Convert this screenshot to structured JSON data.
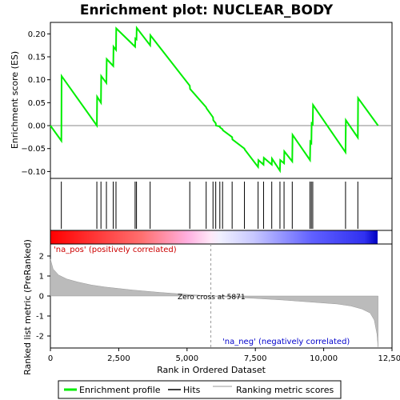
{
  "chart_data": {
    "type": "line",
    "title": "Enrichment plot: NUCLEAR_BODY",
    "xlabel": "Rank in Ordered Dataset",
    "ylabel_top": "Enrichment score (ES)",
    "ylabel_bottom": "Ranked list metric (PreRanked)",
    "x_range": [
      0,
      12000
    ],
    "x_ticks": [
      0,
      2500,
      5000,
      7500,
      10000,
      12500
    ],
    "x_tick_labels": [
      "0",
      "2,500",
      "5,000",
      "7,500",
      "10,000",
      "12,500"
    ],
    "es_ylim": [
      -0.115,
      0.225
    ],
    "es_ticks": [
      -0.1,
      -0.05,
      0.0,
      0.05,
      0.1,
      0.15,
      0.2
    ],
    "es_tick_labels": [
      "−0.10",
      "−0.05",
      "0.00",
      "0.05",
      "0.10",
      "0.15",
      "0.20"
    ],
    "metric_ylim": [
      -2.6,
      2.6
    ],
    "metric_ticks": [
      2,
      1,
      0,
      -1,
      -2
    ],
    "metric_tick_labels": [
      "2",
      "1",
      "0",
      "-1",
      "-2"
    ],
    "hits": [
      400,
      1700,
      1850,
      2050,
      2300,
      2400,
      3100,
      3150,
      3650,
      5100,
      5700,
      5950,
      6050,
      6200,
      6300,
      6650,
      7100,
      7600,
      7800,
      8100,
      8400,
      8550,
      8850,
      9500,
      9550,
      9600,
      10800,
      11250
    ],
    "es_profile": {
      "x": [
        0,
        400,
        410,
        1700,
        1710,
        1850,
        1860,
        2050,
        2060,
        2300,
        2310,
        2400,
        2410,
        3100,
        3110,
        3150,
        3160,
        3650,
        3660,
        5100,
        5110,
        5700,
        5710,
        5950,
        5960,
        6050,
        6060,
        6200,
        6210,
        6300,
        6310,
        6650,
        6660,
        7100,
        7110,
        7600,
        7610,
        7800,
        7810,
        8100,
        8110,
        8400,
        8410,
        8550,
        8560,
        8850,
        8860,
        9500,
        9510,
        9550,
        9560,
        9600,
        9610,
        10800,
        10810,
        11250,
        11260,
        11990
      ],
      "y": [
        0.0,
        -0.033,
        0.108,
        0.0,
        0.063,
        0.05,
        0.108,
        0.093,
        0.145,
        0.13,
        0.172,
        0.165,
        0.212,
        0.172,
        0.19,
        0.188,
        0.213,
        0.175,
        0.197,
        0.087,
        0.08,
        0.04,
        0.038,
        0.018,
        0.012,
        0.005,
        0.0,
        -0.002,
        -0.004,
        -0.008,
        -0.01,
        -0.025,
        -0.03,
        -0.05,
        -0.052,
        -0.09,
        -0.075,
        -0.085,
        -0.07,
        -0.085,
        -0.072,
        -0.098,
        -0.075,
        -0.082,
        -0.056,
        -0.078,
        -0.02,
        -0.075,
        -0.035,
        -0.038,
        0.008,
        0.0,
        0.045,
        -0.058,
        0.012,
        -0.026,
        0.06,
        0.0
      ]
    },
    "metric_profile": {
      "x": [
        0,
        100,
        300,
        600,
        1000,
        1500,
        2000,
        3000,
        4000,
        5000,
        5871,
        6500,
        7500,
        8500,
        9500,
        10500,
        11000,
        11400,
        11700,
        11850,
        11950,
        11990
      ],
      "y": [
        1.85,
        1.35,
        1.05,
        0.85,
        0.7,
        0.55,
        0.45,
        0.3,
        0.18,
        0.08,
        0.0,
        -0.05,
        -0.12,
        -0.2,
        -0.3,
        -0.4,
        -0.5,
        -0.65,
        -0.85,
        -1.2,
        -1.9,
        -2.55
      ]
    },
    "zero_cross": 5871,
    "annotations": {
      "pos": "'na_pos' (positively correlated)",
      "neg": "'na_neg' (negatively correlated)",
      "zero": "Zero cross at 5871"
    },
    "legend": [
      {
        "label": "Enrichment profile",
        "color": "#00ee00"
      },
      {
        "label": "Hits",
        "color": "#000000"
      },
      {
        "label": "Ranking metric scores",
        "color": "#bbbbbb"
      }
    ],
    "colors": {
      "es_line": "#00ee00",
      "hit": "#000000",
      "metric_fill": "#bbbbbb",
      "bar_pos": "#ff0000",
      "bar_mid": "#ffffff",
      "bar_neg": "#0000ff"
    }
  }
}
